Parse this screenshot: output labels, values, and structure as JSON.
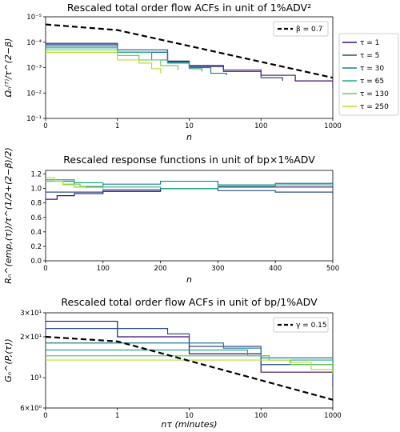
{
  "chart_data": [
    {
      "type": "line",
      "title": "Rescaled total order flow ACFs in unit of 1%ADV²",
      "xlabel": "n",
      "ylabel": "Ωₙ⁽ᵀ⁾/τ^(2−β)",
      "xscale": "symlog",
      "yscale": "log",
      "xlim": [
        0,
        1000
      ],
      "ylim": [
        1e-05,
        0.1
      ],
      "x_ticks": [
        "0",
        "1",
        "10",
        "100",
        "1000"
      ],
      "y_ticks": [
        "10⁻⁵",
        "10⁻⁴",
        "10⁻³",
        "10⁻²",
        "10⁻¹"
      ],
      "legend_position": "outside-right",
      "reference": {
        "name": "β = 0.7",
        "x": [
          0,
          1,
          1000
        ],
        "y": [
          0.05,
          0.03,
          0.0004
        ]
      },
      "series": [
        {
          "name": "τ = 1",
          "x": [
            0,
            1,
            5,
            10,
            30,
            100,
            300,
            1000
          ],
          "y": [
            0.009,
            0.004,
            0.0018,
            0.0012,
            0.0008,
            0.0005,
            0.0003,
            0.00015
          ]
        },
        {
          "name": "τ = 5",
          "x": [
            0,
            1,
            5,
            10,
            30,
            100,
            200
          ],
          "y": [
            0.008,
            0.005,
            0.0017,
            0.0011,
            0.0007,
            0.0004,
            0.0003
          ]
        },
        {
          "name": "τ = 30",
          "x": [
            0,
            1,
            5,
            10,
            20,
            33
          ],
          "y": [
            0.007,
            0.004,
            0.0016,
            0.001,
            0.0006,
            0.0005
          ]
        },
        {
          "name": "τ = 65",
          "x": [
            0,
            1,
            3,
            5,
            10,
            15
          ],
          "y": [
            0.006,
            0.004,
            0.002,
            0.0015,
            0.0009,
            0.0007
          ]
        },
        {
          "name": "τ = 130",
          "x": [
            0,
            1,
            2,
            4,
            7
          ],
          "y": [
            0.005,
            0.003,
            0.002,
            0.0012,
            0.0008
          ]
        },
        {
          "name": "τ = 250",
          "x": [
            0,
            1,
            2,
            3,
            4
          ],
          "y": [
            0.004,
            0.002,
            0.0015,
            0.0009,
            0.0006
          ]
        }
      ]
    },
    {
      "type": "line",
      "title": "Rescaled response functions in unit of bp×1%ADV",
      "xlabel": "n",
      "ylabel": "Rₙ^(emp,(τ))/τ^(1/2+(2−β)/2)",
      "xlim": [
        0,
        500
      ],
      "ylim": [
        0,
        1.25
      ],
      "x_ticks": [
        "0",
        "100",
        "200",
        "300",
        "400",
        "500"
      ],
      "y_ticks": [
        "0.0",
        "0.2",
        "0.4",
        "0.6",
        "0.8",
        "1.0",
        "1.2"
      ],
      "series": [
        {
          "name": "τ = 1",
          "x": [
            0,
            20,
            50,
            100,
            200,
            300,
            400,
            500
          ],
          "y": [
            0.85,
            0.9,
            0.93,
            0.96,
            1.0,
            1.02,
            1.02,
            1.03
          ]
        },
        {
          "name": "τ = 5",
          "x": [
            0,
            50,
            100,
            200,
            300,
            400,
            500
          ],
          "y": [
            0.95,
            0.95,
            0.98,
            1.0,
            0.97,
            0.95,
            0.9
          ]
        },
        {
          "name": "τ = 30",
          "x": [
            0,
            50,
            100,
            200,
            300,
            400,
            500
          ],
          "y": [
            1.1,
            1.02,
            1.06,
            1.1,
            1.05,
            1.07,
            1.02
          ]
        },
        {
          "name": "τ = 65",
          "x": [
            0,
            50,
            100,
            200,
            300,
            400,
            500
          ],
          "y": [
            1.12,
            1.08,
            1.02,
            1.0,
            1.03,
            1.05,
            1.03
          ]
        },
        {
          "name": "τ = 130",
          "x": [
            0,
            30,
            60,
            100
          ],
          "y": [
            1.1,
            1.06,
            1.03,
            1.0
          ]
        },
        {
          "name": "τ = 250",
          "x": [
            0,
            15,
            30,
            50,
            70
          ],
          "y": [
            1.15,
            1.1,
            1.05,
            1.02,
            1.0
          ]
        }
      ]
    },
    {
      "type": "line",
      "title": "Rescaled total order flow ACFs in unit of bp/1%ADV",
      "xlabel": "nτ (minutes)",
      "ylabel": "Gₙ^(P,(τ))",
      "xscale": "symlog",
      "yscale": "log",
      "xlim": [
        0,
        1000
      ],
      "ylim": [
        6,
        30
      ],
      "x_ticks": [
        "0",
        "1",
        "10",
        "100",
        "1000"
      ],
      "y_ticks": [
        "6×10⁰",
        "10¹",
        "2×10¹",
        "3×10¹"
      ],
      "legend_position": "top-right",
      "reference": {
        "name": "γ = 0.15",
        "x": [
          0,
          1,
          1000
        ],
        "y": [
          20,
          18.5,
          6.9
        ]
      },
      "series": [
        {
          "name": "τ = 1",
          "x": [
            0,
            1,
            10,
            100,
            1000
          ],
          "y": [
            26,
            20,
            15,
            11,
            8.6
          ]
        },
        {
          "name": "τ = 5",
          "x": [
            0,
            5,
            10,
            100,
            1000
          ],
          "y": [
            23,
            21,
            17,
            12.5,
            9.2
          ]
        },
        {
          "name": "τ = 30",
          "x": [
            0,
            30,
            100,
            1000
          ],
          "y": [
            18,
            16.5,
            14,
            10
          ]
        },
        {
          "name": "τ = 65",
          "x": [
            0,
            65,
            130,
            1000
          ],
          "y": [
            16,
            14.5,
            13.5,
            10.5
          ]
        },
        {
          "name": "τ = 130",
          "x": [
            0,
            130,
            260,
            1000
          ],
          "y": [
            14.5,
            13.5,
            12.5,
            10.5
          ]
        },
        {
          "name": "τ = 250",
          "x": [
            0,
            250,
            500,
            1000
          ],
          "y": [
            13.5,
            13,
            11.5,
            10.8
          ]
        }
      ]
    }
  ],
  "colors": {
    "series": [
      "#3b0f70",
      "#2f4b8e",
      "#1f7f8e",
      "#23a884",
      "#6ccd5a",
      "#b5de2b"
    ],
    "reference": "#000000"
  }
}
